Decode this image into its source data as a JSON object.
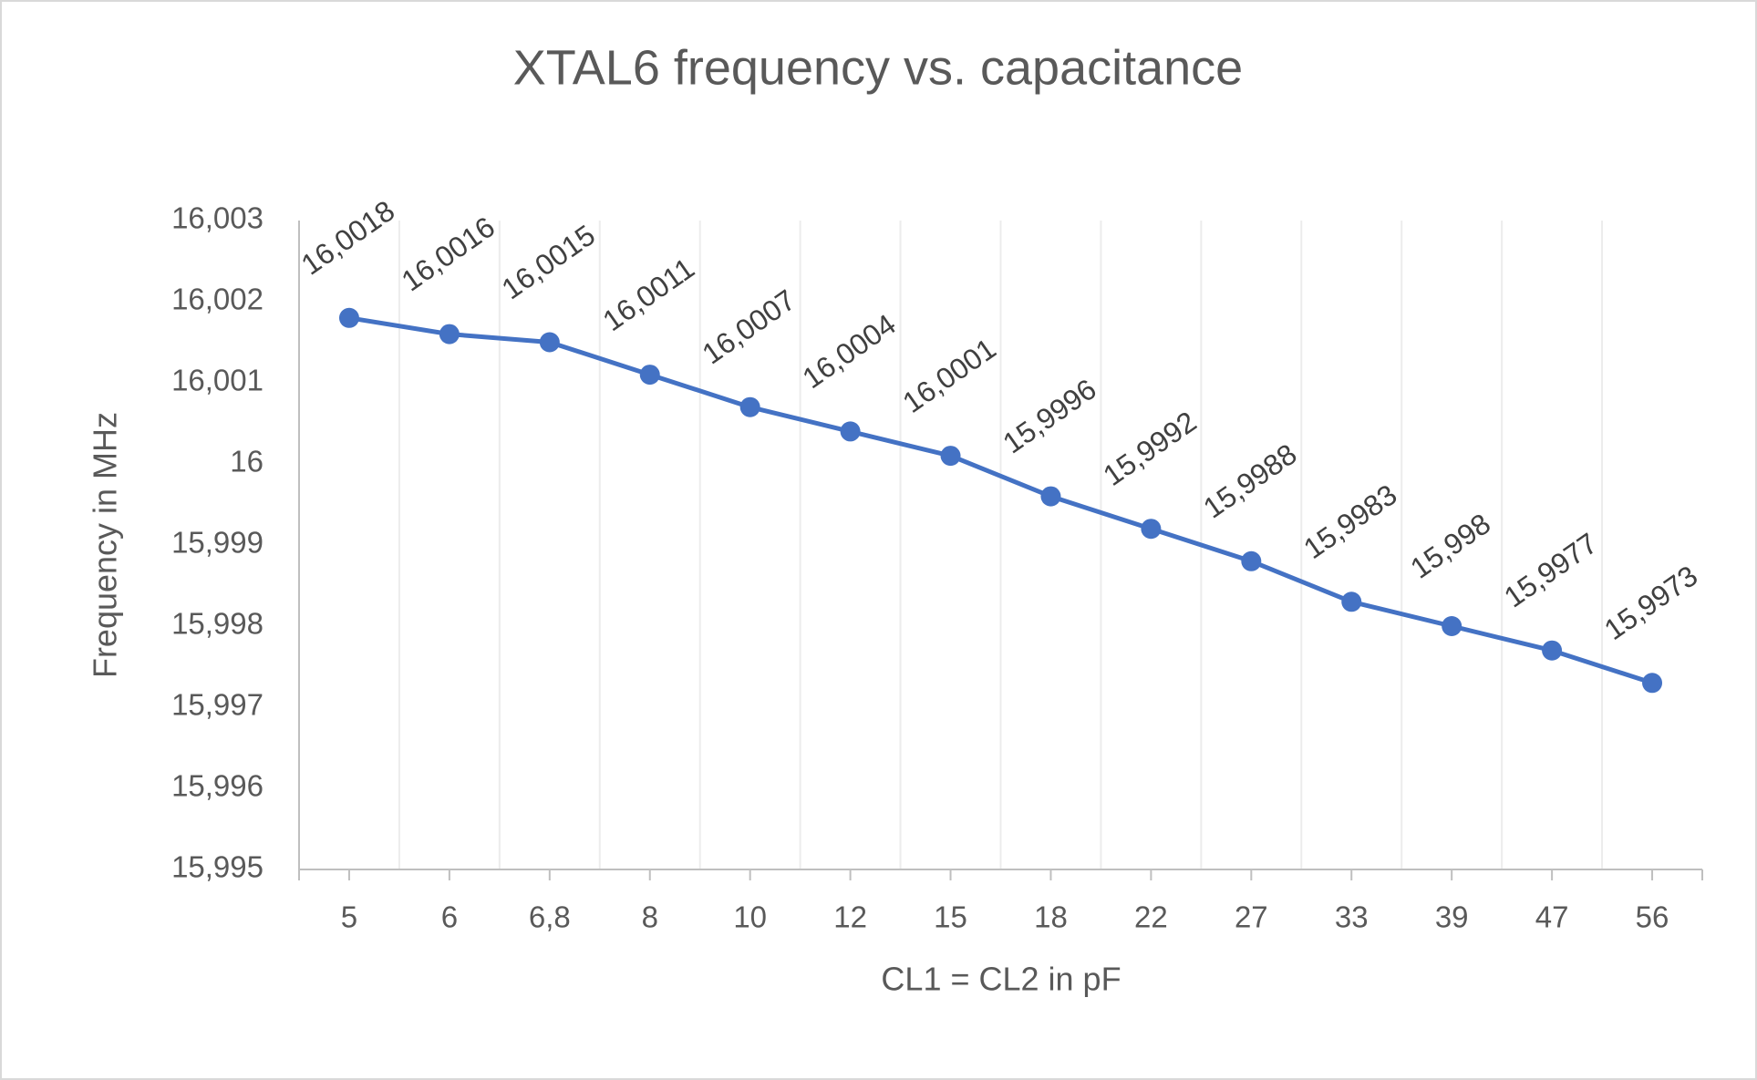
{
  "chart_data": {
    "type": "line",
    "title": "XTAL6 frequency vs. capacitance",
    "x_label": "CL1 = CL2 in pF",
    "y_label": "Frequency in MHz",
    "categories": [
      "5",
      "6",
      "6,8",
      "8",
      "10",
      "12",
      "15",
      "18",
      "22",
      "27",
      "33",
      "39",
      "47",
      "56"
    ],
    "series": [
      {
        "name": "Frequency",
        "color": "#4472c4",
        "values": [
          16.0018,
          16.0016,
          16.0015,
          16.0011,
          16.0007,
          16.0004,
          16.0001,
          15.9996,
          15.9992,
          15.9988,
          15.9983,
          15.998,
          15.9977,
          15.9973
        ],
        "value_labels": [
          "16,0018",
          "16,0016",
          "16,0015",
          "16,0011",
          "16,0007",
          "16,0004",
          "16,0001",
          "15,9996",
          "15,9992",
          "15,9988",
          "15,9983",
          "15,998",
          "15,9977",
          "15,9973"
        ]
      }
    ],
    "ylim": [
      15.995,
      16.003
    ],
    "yticks": [
      {
        "value": 15.995,
        "label": "15,995"
      },
      {
        "value": 15.996,
        "label": "15,996"
      },
      {
        "value": 15.997,
        "label": "15,997"
      },
      {
        "value": 15.998,
        "label": "15,998"
      },
      {
        "value": 15.999,
        "label": "15,999"
      },
      16,
      {
        "value": 16.001,
        "label": "16,001"
      },
      {
        "value": 16.002,
        "label": "16,002"
      },
      {
        "value": 16.003,
        "label": "16,003"
      }
    ]
  }
}
